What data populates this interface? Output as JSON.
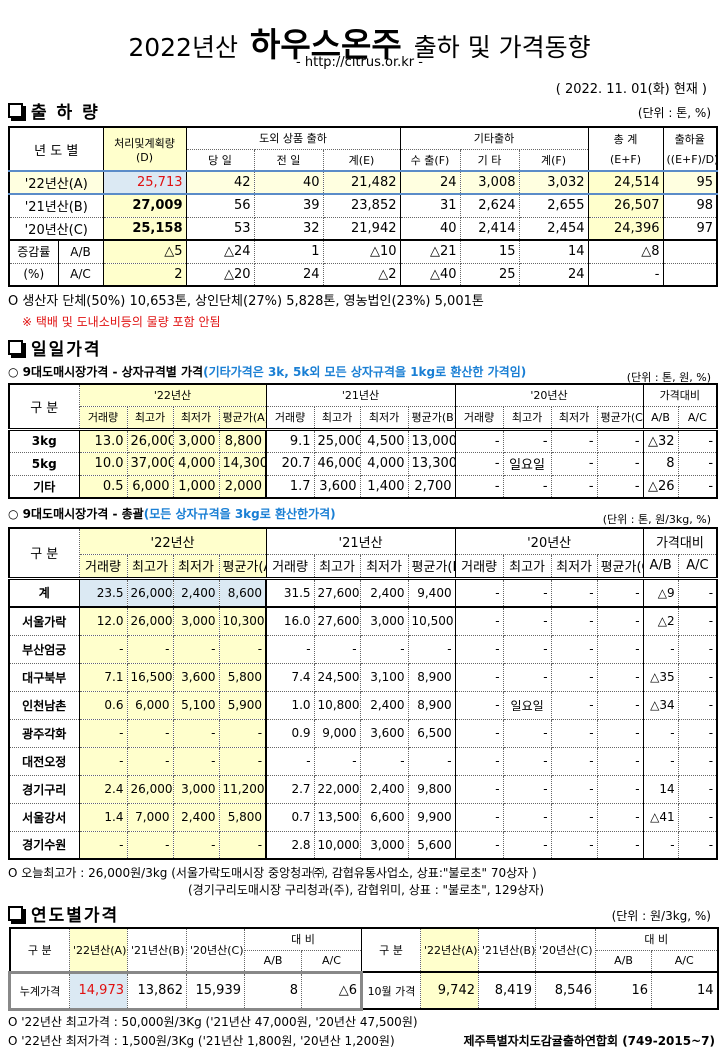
{
  "header": {
    "title_pre": "2022년산",
    "title_main": "하우스온주",
    "title_post": "출하 및 가격동향",
    "url": "- http://citrus.or.kr -",
    "date": "( 2022. 11. 01(화) 현재 )"
  },
  "s1": {
    "title": "출 하 량",
    "unit": "(단위 : 톤, %)",
    "h": {
      "year": "년 도 별",
      "plan": "처리및계획량",
      "plan_d": "(D)",
      "outer": "도외 상품 출하",
      "other": "기타출하",
      "total": "총  계",
      "total_f": "(E+F)",
      "rate": "출하율",
      "rate_f": "((E+F)/D)",
      "day": "당 일",
      "prev": "전 일",
      "sumE": "계(E)",
      "export": "수 출(F)",
      "etc": "기 타",
      "sumF": "계(F)"
    },
    "rows": [
      {
        "label": "'22년산(A)",
        "cells": [
          "25,713",
          "42",
          "40",
          "21,482",
          "24",
          "3,008",
          "3,032",
          "24,514",
          "95"
        ]
      },
      {
        "label": "'21년산(B)",
        "cells": [
          "27,009",
          "56",
          "39",
          "23,852",
          "31",
          "2,624",
          "2,655",
          "26,507",
          "98"
        ]
      },
      {
        "label": "'20년산(C)",
        "cells": [
          "25,158",
          "53",
          "32",
          "21,942",
          "40",
          "2,414",
          "2,454",
          "24,396",
          "97"
        ]
      }
    ],
    "inc_label1": "증감률",
    "inc_label2": "(%)",
    "inc": [
      {
        "label": "A/B",
        "cells": [
          "△5",
          "△24",
          "1",
          "△10",
          "△21",
          "15",
          "14",
          "△8",
          ""
        ]
      },
      {
        "label": "A/C",
        "cells": [
          "2",
          "△20",
          "24",
          "△2",
          "△40",
          "25",
          "24",
          "-",
          ""
        ]
      }
    ],
    "note1": "O 생산자 단체(50%)  10,653톤,    상인단체(27%)  5,828톤,   영농법인(23%)   5,001톤",
    "note2": "※ 택배 및 도내소비등의 물량 포함 안됨"
  },
  "s2": {
    "title": "일일가격",
    "sub1": "○ 9대도매시장가격 - 상자규격별 가격",
    "sub1_note": "(기타가격은 3k, 5k외 모든 상자규격을 1kg로 환산한 가격임)",
    "unit1": "(단위 : 톤,  원, %)",
    "sub2": "○ 9대도매시장가격 - 총괄",
    "sub2_note": "(모든 상자규격을 3kg로 환산한가격)",
    "unit2": "(단위 : 톤, 원/3kg, %)",
    "h": {
      "gubun": "구  분",
      "y22": "'22년산",
      "y21": "'21년산",
      "y20": "'20년산",
      "cmp": "가격대비",
      "vol": "거래량",
      "max": "최고가",
      "min": "최저가",
      "avgA": "평균가(A)",
      "avgB": "평균가(B)",
      "avgC": "평균가(C)",
      "ab": "A/B",
      "ac": "A/C"
    },
    "t2": [
      {
        "label": "3kg",
        "cells": [
          "13.0",
          "26,000",
          "3,000",
          "8,800",
          "9.1",
          "25,000",
          "4,500",
          "13,000",
          "-",
          "-",
          "-",
          "-",
          "△32",
          "-"
        ]
      },
      {
        "label": "5kg",
        "cells": [
          "10.0",
          "37,000",
          "4,000",
          "14,300",
          "20.7",
          "46,000",
          "4,000",
          "13,300",
          "-",
          "일요일",
          "-",
          "-",
          "8",
          "-"
        ]
      },
      {
        "label": "기타",
        "cells": [
          "0.5",
          "6,000",
          "1,000",
          "2,000",
          "1.7",
          "3,600",
          "1,400",
          "2,700",
          "-",
          "-",
          "-",
          "-",
          "△26",
          "-"
        ]
      }
    ],
    "t3": [
      {
        "label": "계",
        "cells": [
          "23.5",
          "26,000",
          "2,400",
          "8,600",
          "31.5",
          "27,600",
          "2,400",
          "9,400",
          "-",
          "-",
          "-",
          "-",
          "△9",
          "-"
        ]
      },
      {
        "label": "서울가락",
        "cells": [
          "12.0",
          "26,000",
          "3,000",
          "10,300",
          "16.0",
          "27,600",
          "3,000",
          "10,500",
          "-",
          "-",
          "-",
          "-",
          "△2",
          "-"
        ]
      },
      {
        "label": "부산엄궁",
        "cells": [
          "-",
          "-",
          "-",
          "-",
          "-",
          "-",
          "-",
          "-",
          "-",
          "-",
          "-",
          "-",
          "-",
          "-"
        ]
      },
      {
        "label": "대구북부",
        "cells": [
          "7.1",
          "16,500",
          "3,600",
          "5,800",
          "7.4",
          "24,500",
          "3,100",
          "8,900",
          "-",
          "-",
          "-",
          "-",
          "△35",
          "-"
        ]
      },
      {
        "label": "인천남촌",
        "cells": [
          "0.6",
          "6,000",
          "5,100",
          "5,900",
          "1.0",
          "10,800",
          "2,400",
          "8,900",
          "-",
          "일요일",
          "-",
          "-",
          "△34",
          "-"
        ]
      },
      {
        "label": "광주각화",
        "cells": [
          "-",
          "-",
          "-",
          "-",
          "0.9",
          "9,000",
          "3,600",
          "6,500",
          "-",
          "-",
          "-",
          "-",
          "-",
          "-"
        ]
      },
      {
        "label": "대전오정",
        "cells": [
          "-",
          "-",
          "-",
          "-",
          "-",
          "-",
          "-",
          "-",
          "-",
          "-",
          "-",
          "-",
          "-",
          "-"
        ]
      },
      {
        "label": "경기구리",
        "cells": [
          "2.4",
          "26,000",
          "3,000",
          "11,200",
          "2.7",
          "22,000",
          "2,400",
          "9,800",
          "-",
          "-",
          "-",
          "-",
          "14",
          "-"
        ]
      },
      {
        "label": "서울강서",
        "cells": [
          "1.4",
          "7,000",
          "2,400",
          "5,800",
          "0.7",
          "13,500",
          "6,600",
          "9,900",
          "-",
          "-",
          "-",
          "-",
          "△41",
          "-"
        ]
      },
      {
        "label": "경기수원",
        "cells": [
          "-",
          "-",
          "-",
          "-",
          "2.8",
          "10,000",
          "3,000",
          "5,600",
          "-",
          "-",
          "-",
          "-",
          "-",
          "-"
        ]
      }
    ],
    "note1": "O 오늘최고가 : 26,000원/3kg (서울가락도매시장  중앙청과㈜,   감협유통사업소,   상표:\"불로초\"   70상자 )",
    "note2": "(경기구리도매시장  구리청과(주),    감협위미,  상표 : \"불로초\",   129상자)"
  },
  "s3": {
    "title": "연도별가격",
    "unit": "(단위 : 원/3kg, %)",
    "h": {
      "gubun": "구  분",
      "a": "'22년산(A)",
      "b": "'21년산(B)",
      "c": "'20년산(C)",
      "cmp": "대     비",
      "ab": "A/B",
      "ac": "A/C"
    },
    "row": {
      "label1": "누계가격",
      "cells1": [
        "14,973",
        "13,862",
        "15,939",
        "8",
        "△6"
      ],
      "label2": "10월 가격",
      "cells2": [
        "9,742",
        "8,419",
        "8,546",
        "16",
        "14"
      ]
    },
    "note1": "O  '22년산 최고가격 : 50,000원/3Kg ('21년산 47,000원, '20년산 47,500원)",
    "note2": "O  '22년산 최저가격 :   1,500원/3Kg ('21년산   1,800원, '20년산  1,200원)",
    "org": "제주특별자치도감귤출하연합회 (749-2015~7)"
  },
  "colors": {
    "highlight_red": "#e01010",
    "note_blue": "#1a7fd4",
    "yellow": "#ffffcc",
    "light_blue": "#dbe9f3"
  }
}
